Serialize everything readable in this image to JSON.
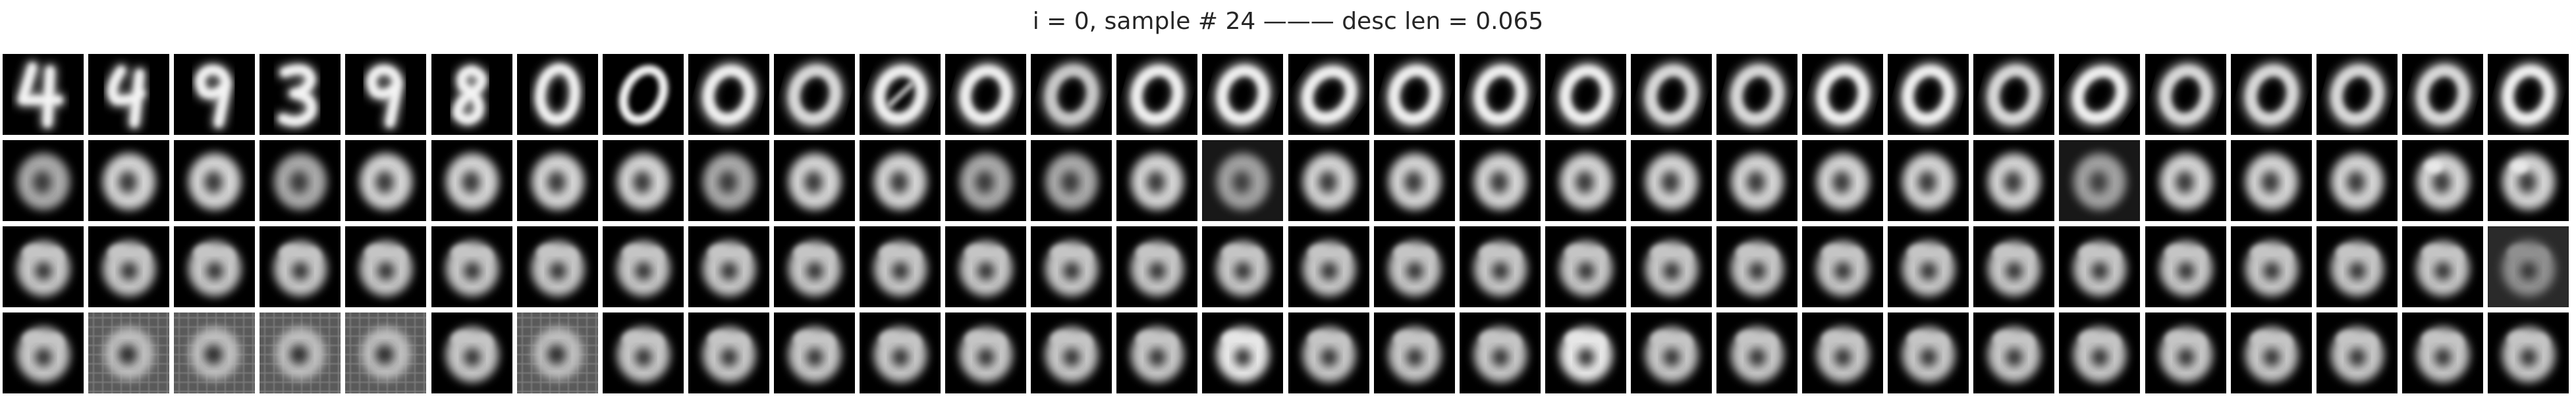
{
  "title": "i = 0, sample # 24 ——— desc len = 0.065",
  "grid": {
    "rows": 4,
    "cols": 30,
    "tiles": [
      [
        "digit-4",
        "digit-4-blur",
        "digit-9",
        "digit-3",
        "digit-9",
        "digit-8",
        "digit-0-thin",
        "digit-0",
        "zero-round",
        "zero-soft",
        "zero-slash",
        "zero-round",
        "zero-fuzzy",
        "zero-bright",
        "zero-round",
        "zero-tilt",
        "zero-round",
        "zero-round",
        "zero-round",
        "zero-soft",
        "zero-soft",
        "zero-round",
        "zero-round",
        "zero-soft",
        "zero-tilt",
        "zero-soft",
        "zero-soft",
        "zero-soft",
        "zero-soft",
        "zero-outline"
      ],
      [
        "blob-grey",
        "blob",
        "blob",
        "blob-grey",
        "blob",
        "blob",
        "blob",
        "blob",
        "blob-grey",
        "blob",
        "blob",
        "blob-grey",
        "blob-grey",
        "blob",
        "blob-noisy",
        "blob",
        "blob",
        "blob",
        "blob",
        "blob",
        "blob",
        "blob",
        "blob",
        "blob",
        "blob-noisy",
        "blob",
        "blob",
        "blob",
        "blob-lumpy",
        "blob-lumpy"
      ],
      [
        "lumpy",
        "lumpy",
        "lumpy",
        "lumpy",
        "lumpy",
        "lumpy",
        "lumpy",
        "lumpy",
        "lumpy",
        "lumpy",
        "lumpy",
        "lumpy",
        "lumpy",
        "lumpy",
        "lumpy",
        "lumpy",
        "lumpy",
        "lumpy",
        "lumpy",
        "lumpy",
        "lumpy",
        "lumpy",
        "lumpy",
        "lumpy",
        "lumpy",
        "lumpy",
        "lumpy",
        "lumpy",
        "lumpy",
        "lumpy-dim"
      ],
      [
        "lumpy",
        "noise-grid",
        "noise-grid",
        "noise-grid",
        "noise-grid",
        "lumpy",
        "noise-grid",
        "lumpy",
        "lumpy",
        "lumpy",
        "lumpy",
        "lumpy",
        "lumpy",
        "lumpy",
        "lumpy-bright",
        "lumpy",
        "lumpy",
        "lumpy",
        "lumpy-bright",
        "lumpy",
        "lumpy",
        "lumpy",
        "lumpy",
        "lumpy",
        "lumpy",
        "lumpy",
        "lumpy",
        "lumpy",
        "lumpy",
        "lumpy"
      ]
    ]
  }
}
